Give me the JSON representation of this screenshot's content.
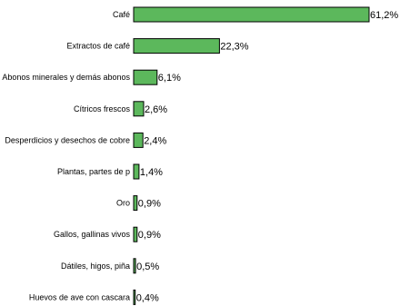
{
  "chart_data": {
    "type": "bar",
    "orientation": "horizontal",
    "categories": [
      "Café",
      "Extractos de café",
      "Abonos minerales y demás abonos",
      "Cítricos frescos",
      "Desperdicios y desechos de cobre",
      "Plantas, partes de p",
      "Oro",
      "Gallos, gallinas vivos",
      "Dátiles, higos, piña",
      "Huevos de ave con cascara"
    ],
    "values": [
      61.2,
      22.3,
      6.1,
      2.6,
      2.4,
      1.4,
      0.9,
      0.9,
      0.5,
      0.4
    ],
    "value_labels": [
      "61,2%",
      "22,3%",
      "6,1%",
      "2,6%",
      "2,4%",
      "1,4%",
      "0,9%",
      "0,9%",
      "0,5%",
      "0,4%"
    ],
    "xlim": [
      0,
      61.2
    ],
    "grid": false,
    "legend": "none",
    "bar_color": "#5cb85c"
  }
}
